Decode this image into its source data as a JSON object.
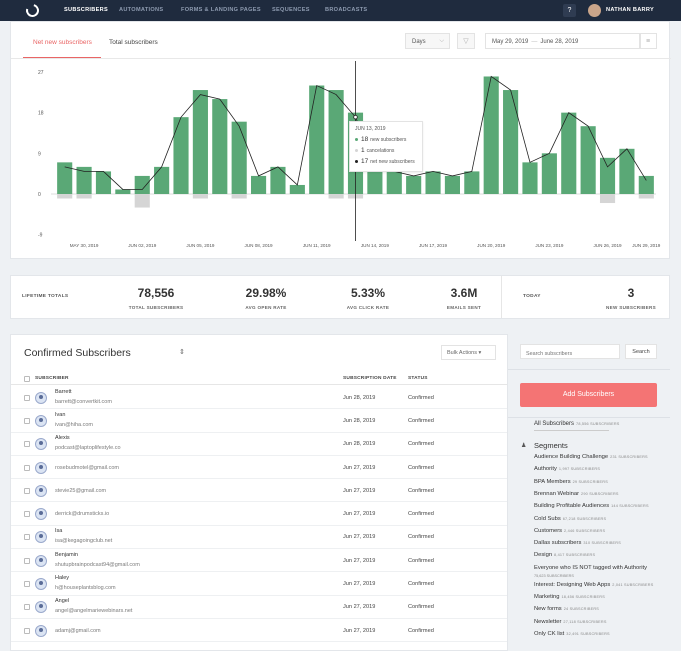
{
  "nav": {
    "items": [
      "SUBSCRIBERS",
      "AUTOMATIONS",
      "FORMS & LANDING PAGES",
      "SEQUENCES",
      "BROADCASTS"
    ],
    "help_label": "?",
    "user_name": "NATHAN BARRY"
  },
  "chart_panel": {
    "tabs": [
      "Net new subscribers",
      "Total subscribers"
    ],
    "period": "Days",
    "date_from": "May 29, 2019",
    "date_sep": "—",
    "date_to": "June 28, 2019"
  },
  "tooltip": {
    "date": "JUN 13, 2019",
    "rows": [
      {
        "num": "18",
        "text": "new subscribers"
      },
      {
        "num": "1",
        "text": "cancelations"
      },
      {
        "num": "17",
        "text": "net new subscribers"
      }
    ]
  },
  "chart_data": {
    "type": "bar",
    "title": "",
    "xlabel": "",
    "ylabel": "",
    "ylim": [
      -9,
      27
    ],
    "yticks": [
      -9,
      0,
      9,
      18,
      27
    ],
    "x_tick_labels": [
      "MAY 30, 2019",
      "JUN 02, 2019",
      "JUN 05, 2019",
      "JUN 08, 2019",
      "JUN 11, 2019",
      "JUN 14, 2019",
      "JUN 17, 2019",
      "JUN 20, 2019",
      "JUN 23, 2019",
      "JUN 26, 2019",
      "JUN 29, 2019"
    ],
    "new_subscribers": [
      7,
      6,
      5,
      1,
      4,
      6,
      17,
      23,
      21,
      16,
      4,
      6,
      2,
      24,
      23,
      18,
      7,
      5,
      4,
      5,
      4,
      5,
      26,
      23,
      7,
      9,
      18,
      15,
      8,
      10,
      4
    ],
    "cancelations": [
      1,
      1,
      0,
      0,
      3,
      0,
      0,
      1,
      0,
      1,
      0,
      0,
      0,
      0,
      1,
      1,
      0,
      0,
      0,
      0,
      0,
      0,
      0,
      0,
      0,
      0,
      0,
      0,
      2,
      0,
      1
    ],
    "net_new_subscribers": [
      6,
      5,
      5,
      1,
      1,
      6,
      17,
      22,
      21,
      15,
      4,
      6,
      2,
      24,
      22,
      17,
      7,
      5,
      4,
      5,
      4,
      5,
      26,
      23,
      7,
      9,
      18,
      15,
      6,
      10,
      3
    ],
    "highlight_index": 15,
    "colors": {
      "new": "#5aa876",
      "cancel": "#d5d5d5",
      "net": "#222222"
    }
  },
  "stats": {
    "label": "LIFETIME TOTALS",
    "items": [
      {
        "value": "78,556",
        "label": "TOTAL SUBSCRIBERS"
      },
      {
        "value": "29.98%",
        "label": "AVG OPEN RATE"
      },
      {
        "value": "5.33%",
        "label": "AVG CLICK RATE"
      },
      {
        "value": "3.6M",
        "label": "EMAILS SENT"
      }
    ],
    "today_label": "TODAY",
    "today": {
      "value": "3",
      "label": "NEW SUBSCRIBERS"
    }
  },
  "list": {
    "title": "Confirmed Subscribers",
    "sort_icon": "⇕",
    "bulk_label": "Bulk Actions ▾",
    "columns": [
      "SUBSCRIBER",
      "SUBSCRIPTION DATE",
      "STATUS"
    ],
    "rows": [
      {
        "name": "Barrett",
        "email": "barrett@convertkit.com",
        "date": "Jun 28, 2019",
        "status": "Confirmed"
      },
      {
        "name": "Ivan",
        "email": "ivan@hiha.com",
        "date": "Jun 28, 2019",
        "status": "Confirmed"
      },
      {
        "name": "Alexis",
        "email": "podcast@laptoplifestyle.co",
        "date": "Jun 28, 2019",
        "status": "Confirmed"
      },
      {
        "name": "",
        "email": "rosebudmotel@gmail.com",
        "date": "Jun 27, 2019",
        "status": "Confirmed"
      },
      {
        "name": "",
        "email": "stevie25@gmail.com",
        "date": "Jun 27, 2019",
        "status": "Confirmed"
      },
      {
        "name": "",
        "email": "derrick@drumsticks.io",
        "date": "Jun 27, 2019",
        "status": "Confirmed"
      },
      {
        "name": "Isa",
        "email": "isa@kegagoingclub.net",
        "date": "Jun 27, 2019",
        "status": "Confirmed"
      },
      {
        "name": "Benjamin",
        "email": "shutupbrainpodcast94@gmail.com",
        "date": "Jun 27, 2019",
        "status": "Confirmed"
      },
      {
        "name": "Haley",
        "email": "h@houseplantsblog.com",
        "date": "Jun 27, 2019",
        "status": "Confirmed"
      },
      {
        "name": "Angel",
        "email": "angel@angelmariewebinars.net",
        "date": "Jun 27, 2019",
        "status": "Confirmed"
      },
      {
        "name": "",
        "email": "adamj@gmail.com",
        "date": "Jun 27, 2019",
        "status": "Confirmed"
      }
    ]
  },
  "sidebar": {
    "search_placeholder": "Search subscribers",
    "search_button": "Search",
    "add_button": "Add Subscribers",
    "all_label": "All Subscribers",
    "all_count": "78,556 SUBSCRIBERS",
    "segments_icon": "♟",
    "segments_label": "Segments",
    "segments": [
      {
        "name": "Audience Building Challenge",
        "count": "231 SUBSCRIBERS"
      },
      {
        "name": "Authority",
        "count": "1,997 SUBSCRIBERS"
      },
      {
        "name": "BPA Members",
        "count": "29 SUBSCRIBERS"
      },
      {
        "name": "Brennan Webinar",
        "count": "290 SUBSCRIBERS"
      },
      {
        "name": "Building Profitable Audiences",
        "count": "144 SUBSCRIBERS"
      },
      {
        "name": "Cold Subs",
        "count": "67,218 SUBSCRIBERS"
      },
      {
        "name": "Customers",
        "count": "2,446 SUBSCRIBERS"
      },
      {
        "name": "Dallas subscribers",
        "count": "310 SUBSCRIBERS"
      },
      {
        "name": "Design",
        "count": "8,417 SUBSCRIBERS"
      },
      {
        "name": "Everyone who IS NOT tagged with Authority",
        "count": "75,623 SUBSCRIBERS"
      },
      {
        "name": "Interest: Designing Web Apps",
        "count": "2,041 SUBSCRIBERS"
      },
      {
        "name": "Marketing",
        "count": "18,456 SUBSCRIBERS"
      },
      {
        "name": "New forms",
        "count": "24 SUBSCRIBERS"
      },
      {
        "name": "Newsletter",
        "count": "27,118 SUBSCRIBERS"
      },
      {
        "name": "Only CK list",
        "count": "32,491 SUBSCRIBERS"
      }
    ]
  }
}
